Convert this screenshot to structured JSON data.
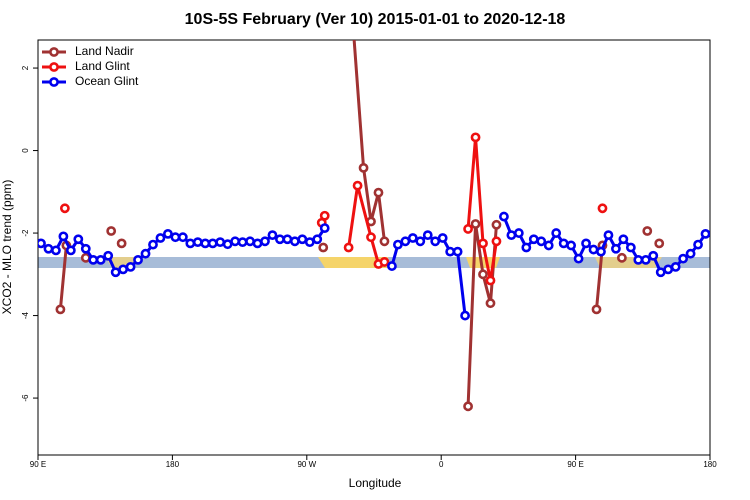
{
  "chart_data": {
    "type": "line",
    "title": "10S-5S February (Ver 10)   2015-01-01 to 2020-12-18",
    "xlabel": "Longitude",
    "ylabel": "XCO2 - MLO trend (ppm)",
    "xlim": [
      90,
      540
    ],
    "xticks": [
      {
        "value": 90,
        "label": "90 E"
      },
      180,
      {
        "value": 270,
        "label": "90 W"
      },
      {
        "value": 360,
        "label": "0"
      },
      {
        "value": 450,
        "label": "90 E"
      },
      {
        "value": 540,
        "label": "180"
      }
    ],
    "ylim": [
      -7.38,
      2.68
    ],
    "yticks": [
      -6,
      -4,
      -2,
      0,
      2
    ],
    "legend": "top-left",
    "series": [
      {
        "name": "Land Nadir",
        "color": "#a03232",
        "x": [
          105,
          109,
          null,
          122,
          null,
          139,
          null,
          146,
          null,
          281,
          null,
          298,
          308,
          313,
          318,
          322,
          null,
          378,
          383,
          388,
          393,
          397,
          null,
          464,
          468,
          null,
          481,
          null,
          498,
          null,
          506
        ],
        "values": [
          -3.85,
          -2.3,
          null,
          -2.6,
          null,
          -1.95,
          null,
          -2.25,
          null,
          -2.35,
          null,
          4.5,
          -0.42,
          -1.72,
          -1.02,
          -2.2,
          null,
          -6.2,
          -1.78,
          -3.0,
          -3.7,
          -1.8,
          null,
          -3.85,
          -2.3,
          null,
          -2.6,
          null,
          -1.95,
          null,
          -2.25
        ]
      },
      {
        "name": "Land Glint",
        "color": "#ee1111",
        "x": [
          108,
          null,
          280,
          282,
          null,
          298,
          304,
          313,
          318,
          322,
          null,
          378,
          383,
          388,
          393,
          397,
          null,
          468
        ],
        "values": [
          -1.4,
          null,
          -1.75,
          -1.58,
          null,
          -2.35,
          -0.85,
          -2.1,
          -2.75,
          -2.7,
          null,
          -1.9,
          0.32,
          -2.25,
          -3.15,
          -2.2,
          null,
          -1.4
        ]
      },
      {
        "name": "Ocean Glint",
        "color": "#0000ee",
        "x": [
          92,
          97,
          102,
          107,
          112,
          117,
          122,
          127,
          132,
          137,
          142,
          147,
          152,
          157,
          162,
          167,
          172,
          177,
          182,
          187,
          192,
          197,
          202,
          207,
          212,
          217,
          222,
          227,
          232,
          237,
          242,
          247,
          252,
          257,
          262,
          267,
          272,
          277,
          282,
          null,
          327,
          331,
          336,
          341,
          346,
          351,
          356,
          361,
          366,
          371,
          376,
          null,
          402,
          407,
          412,
          417,
          422,
          427,
          432,
          437,
          442,
          447,
          452,
          457,
          462,
          467,
          472,
          477,
          482,
          487,
          492,
          497,
          502,
          507,
          512,
          517,
          522,
          527,
          532,
          537
        ],
        "values": [
          -2.25,
          -2.38,
          -2.42,
          -2.08,
          -2.42,
          -2.15,
          -2.38,
          -2.65,
          -2.65,
          -2.55,
          -2.95,
          -2.88,
          -2.82,
          -2.65,
          -2.5,
          -2.28,
          -2.12,
          -2.02,
          -2.1,
          -2.1,
          -2.25,
          -2.22,
          -2.25,
          -2.25,
          -2.22,
          -2.27,
          -2.2,
          -2.22,
          -2.2,
          -2.25,
          -2.2,
          -2.05,
          -2.15,
          -2.15,
          -2.2,
          -2.15,
          -2.22,
          -2.15,
          -1.88,
          null,
          -2.8,
          -2.28,
          -2.2,
          -2.12,
          -2.2,
          -2.05,
          -2.2,
          -2.12,
          -2.45,
          -2.45,
          -4.0,
          null,
          -1.6,
          -2.05,
          -2.0,
          -2.35,
          -2.15,
          -2.2,
          -2.3,
          -2.0,
          -2.25,
          -2.3,
          -2.62,
          -2.25,
          -2.4,
          -2.45,
          -2.05,
          -2.38,
          -2.15,
          -2.35,
          -2.65,
          -2.65,
          -2.55,
          -2.95,
          -2.88,
          -2.82,
          -2.62,
          -2.5,
          -2.28,
          -2.02
        ]
      }
    ]
  }
}
